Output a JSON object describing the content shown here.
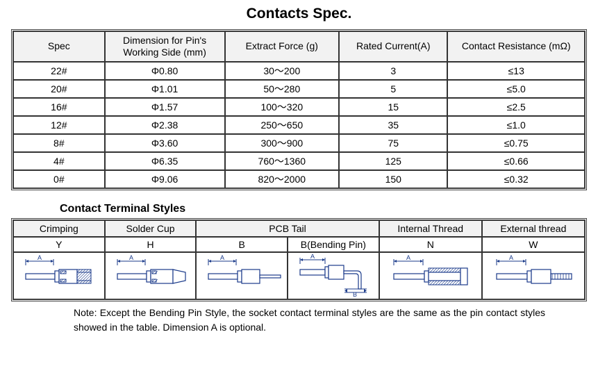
{
  "title": "Contacts Spec.",
  "specTable": {
    "headers": [
      "Spec",
      "Dimension for Pin's Working Side (mm)",
      "Extract Force (g)",
      "Rated Current(A)",
      "Contact Resistance (mΩ)"
    ],
    "colWidths": [
      "16%",
      "21%",
      "20%",
      "19%",
      "24%"
    ],
    "rows": [
      [
        "22#",
        "Φ0.80",
        "30～200",
        "3",
        "≤13"
      ],
      [
        "20#",
        "Φ1.01",
        "50～280",
        "5",
        "≤5.0"
      ],
      [
        "16#",
        "Φ1.57",
        "100～320",
        "15",
        "≤2.5"
      ],
      [
        "12#",
        "Φ2.38",
        "250～650",
        "35",
        "≤1.0"
      ],
      [
        "8#",
        "Φ3.60",
        "300～900",
        "75",
        "≤0.75"
      ],
      [
        "4#",
        "Φ6.35",
        "760～1360",
        "125",
        "≤0.66"
      ],
      [
        "0#",
        "Φ9.06",
        "820～2000",
        "150",
        "≤0.32"
      ]
    ]
  },
  "stylesTitle": "Contact Terminal Styles",
  "stylesTable": {
    "headers": [
      "Crimping",
      "Solder Cup",
      "PCB Tail",
      "Internal Thread",
      "External thread"
    ],
    "headerSpans": [
      1,
      1,
      2,
      1,
      1
    ],
    "colWidths": [
      "16%",
      "16%",
      "16%",
      "16%",
      "18%",
      "18%"
    ],
    "codes": [
      "Y",
      "H",
      "B",
      "B(Bending Pin)",
      "N",
      "W"
    ],
    "diagram_stroke": "#1a3a8a",
    "diagram_fill": "#ffffff"
  },
  "note": "Note: Except the Bending Pin Style, the socket contact terminal styles are the same as the pin contact styles showed in the table. Dimension A is optional."
}
